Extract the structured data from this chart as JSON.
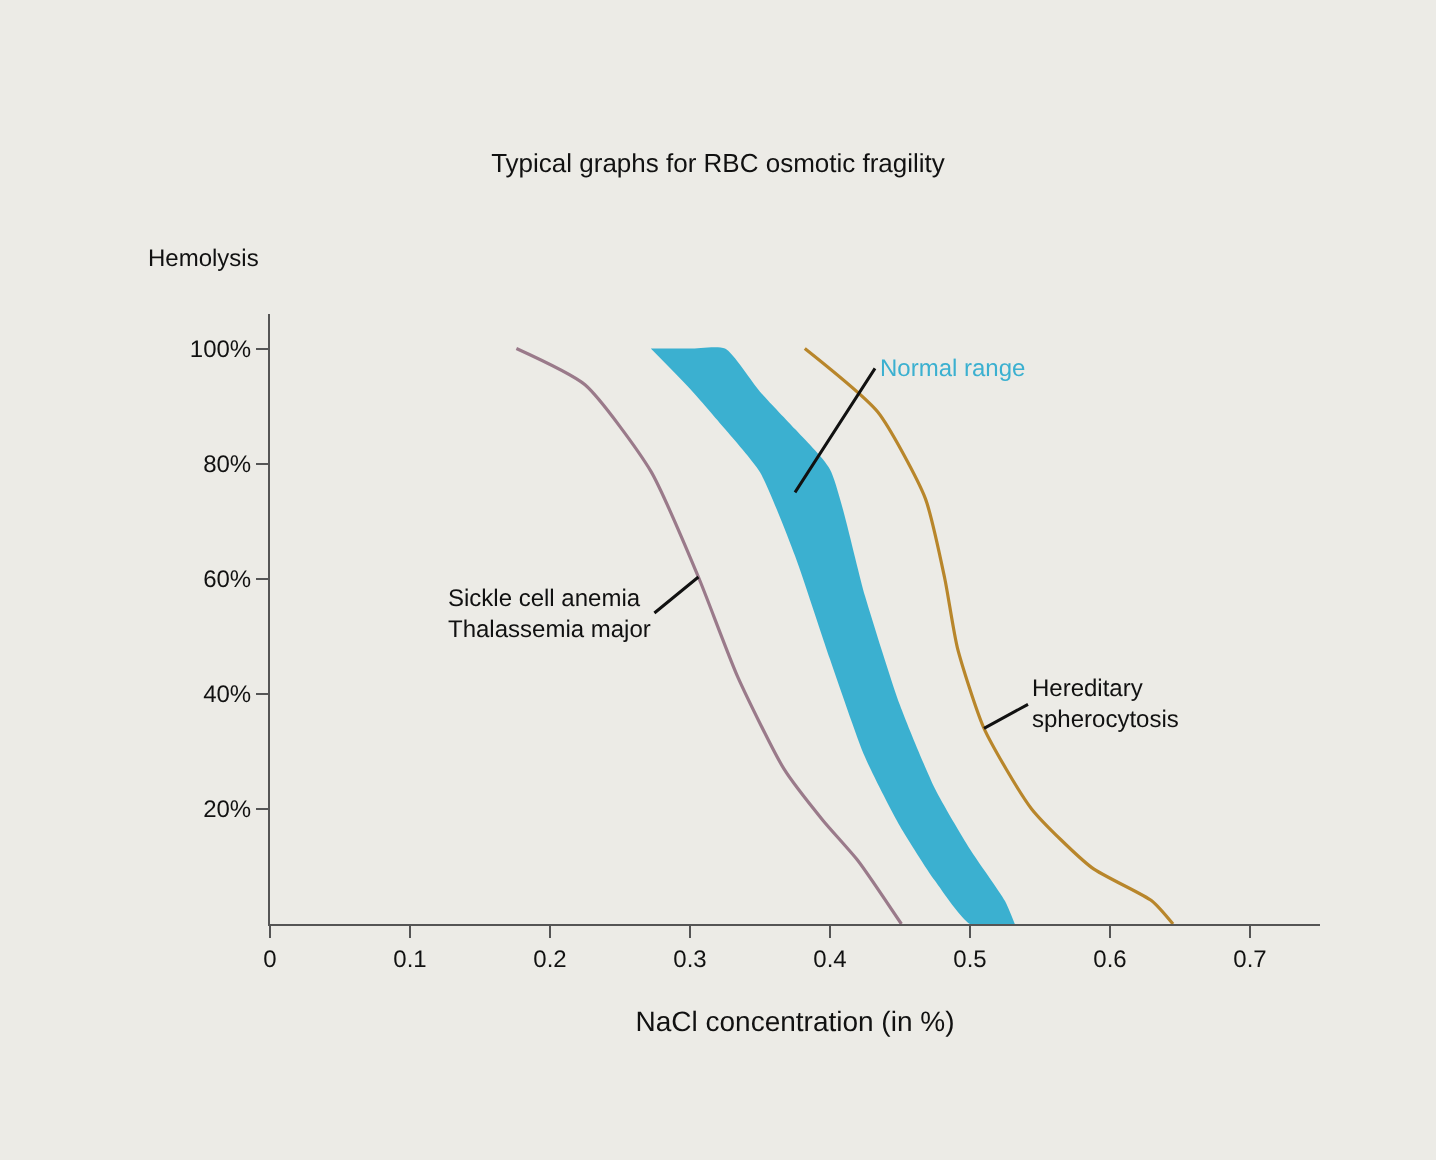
{
  "chart_data": {
    "type": "line",
    "title": "Typical graphs for RBC osmotic fragility",
    "xlabel": "NaCl concentration (in %)",
    "ylabel": "Hemolysis",
    "series": [
      {
        "name": "Sickle cell anemia\nThalassemia major",
        "color": "#9a7a8a",
        "x": [
          0.176,
          0.225,
          0.272,
          0.306,
          0.334,
          0.367,
          0.395,
          0.42,
          0.451
        ],
        "values": [
          100,
          93.7,
          78.7,
          60.3,
          43,
          27,
          18,
          11,
          0
        ]
      },
      {
        "name": "Normal range",
        "color": "#3bb0d0",
        "x": [
          0.272,
          0.3,
          0.325,
          0.35,
          0.375,
          0.4,
          0.425,
          0.45,
          0.475,
          0.5,
          0.525,
          0.532
        ],
        "values": [
          null,
          null,
          null,
          null,
          null,
          null,
          null,
          null,
          null,
          null,
          null,
          null
        ],
        "lower": [
          100,
          93,
          86,
          78.5,
          64,
          46,
          29,
          17,
          7.5,
          0,
          0,
          0
        ],
        "upper": [
          100,
          100,
          100,
          92.5,
          86,
          79,
          57,
          38,
          23.5,
          13,
          4,
          0
        ]
      },
      {
        "name": "Hereditary\nspherocytosis",
        "color": "#b8862b",
        "x": [
          0.382,
          0.434,
          0.468,
          0.482,
          0.491,
          0.51,
          0.544,
          0.587,
          0.63,
          0.645
        ],
        "values": [
          100,
          89,
          74,
          60,
          48,
          34,
          20,
          9.8,
          4,
          0
        ]
      }
    ],
    "xlim": [
      0,
      0.75
    ],
    "ylim": [
      0,
      106
    ],
    "xticks": [
      0,
      0.1,
      0.2,
      0.3,
      0.4,
      0.5,
      0.6,
      0.7
    ],
    "yticks": [
      {
        "value": 20,
        "label": "20%"
      },
      {
        "value": 40,
        "label": "40%"
      },
      {
        "value": 60,
        "label": "60%"
      },
      {
        "value": 80,
        "label": "80%"
      },
      {
        "value": 100,
        "label": "100%"
      }
    ],
    "grid": false,
    "legend": false,
    "marker": "none",
    "line_style": "solid"
  }
}
